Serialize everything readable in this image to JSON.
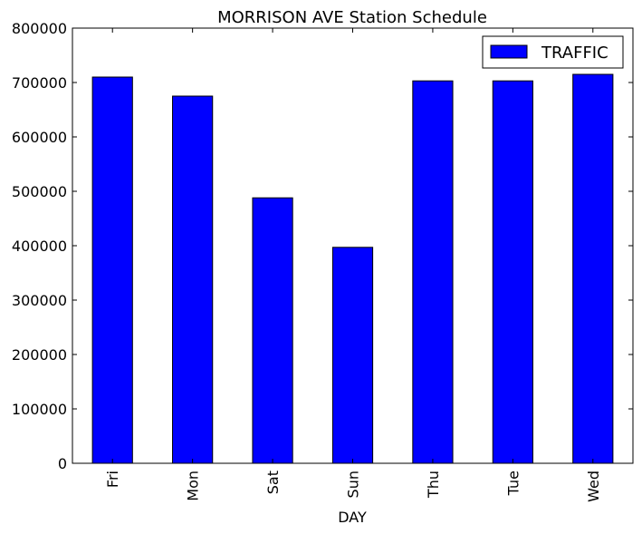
{
  "chart_data": {
    "type": "bar",
    "title": "MORRISON AVE Station Schedule",
    "xlabel": "DAY",
    "ylabel": "",
    "categories": [
      "Fri",
      "Mon",
      "Sat",
      "Sun",
      "Thu",
      "Tue",
      "Wed"
    ],
    "series": [
      {
        "name": "TRAFFIC",
        "color": "#0000ff",
        "values": [
          710000,
          675000,
          488000,
          397000,
          703000,
          703000,
          715000
        ]
      }
    ],
    "ylim": [
      0,
      800000
    ],
    "yticks": [
      0,
      100000,
      200000,
      300000,
      400000,
      500000,
      600000,
      700000,
      800000
    ],
    "ytick_labels": [
      "0",
      "100000",
      "200000",
      "300000",
      "400000",
      "500000",
      "600000",
      "700000",
      "800000"
    ],
    "grid": false,
    "legend_position": "top-right"
  }
}
